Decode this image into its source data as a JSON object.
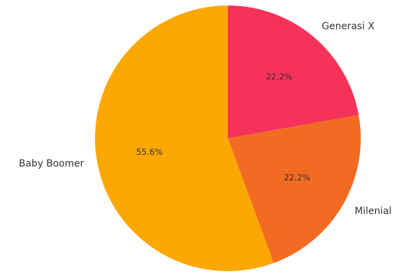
{
  "chart_data": {
    "type": "pie",
    "start_angle_deg": 90,
    "direction": "clockwise",
    "slices": [
      {
        "label": "Generasi X",
        "value": 22.2,
        "pct_text": "22.2%",
        "color": "#f7325a"
      },
      {
        "label": "Milenial",
        "value": 22.2,
        "pct_text": "22.2%",
        "color": "#f26b22"
      },
      {
        "label": "Baby Boomer",
        "value": 55.6,
        "pct_text": "55.6%",
        "color": "#fca804"
      }
    ]
  }
}
